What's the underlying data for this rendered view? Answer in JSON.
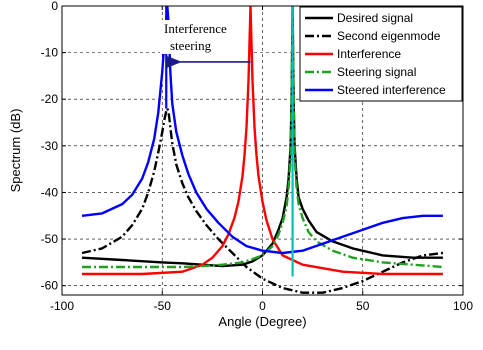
{
  "chart_data": {
    "type": "line",
    "title": "",
    "xlabel": "Angle (Degree)",
    "ylabel": "Spectrum (dB)",
    "xlim": [
      -100,
      100
    ],
    "ylim": [
      -62,
      0
    ],
    "xticks": [
      -100,
      -50,
      0,
      50,
      100
    ],
    "yticks": [
      0,
      -10,
      -20,
      -30,
      -40,
      -50,
      -60
    ],
    "grid": "dashed",
    "legend_position": "top-right",
    "annotation": {
      "text_line1": "Interference",
      "text_line2": "steering",
      "arrow_from": [
        -6,
        -12
      ],
      "arrow_to": [
        -45,
        -12
      ]
    },
    "series": [
      {
        "name": "Desired signal",
        "color": "#000000",
        "style": "solid",
        "x": [
          -90,
          -70,
          -50,
          -40,
          -30,
          -20,
          -10,
          -5,
          0,
          5,
          8,
          10,
          12,
          13,
          14,
          14.5,
          15,
          15.5,
          16,
          17,
          18,
          20,
          23,
          27,
          35,
          45,
          60,
          75,
          90
        ],
        "y": [
          -54,
          -54.5,
          -55,
          -55.2,
          -55.5,
          -55.8,
          -55.5,
          -54.8,
          -53.5,
          -51,
          -48,
          -45.5,
          -41,
          -37,
          -30,
          -20,
          0,
          -20,
          -30,
          -37,
          -41,
          -43.5,
          -46,
          -48.5,
          -50.5,
          -52,
          -53.5,
          -54,
          -54
        ]
      },
      {
        "name": "Second eigenmode",
        "color": "#000000",
        "style": "dashdot",
        "x": [
          -90,
          -80,
          -70,
          -65,
          -60,
          -57,
          -54,
          -52,
          -50,
          -49,
          -48,
          -47.5,
          -47,
          -46.5,
          -46,
          -45,
          -43,
          -40,
          -37,
          -33,
          -28,
          -22,
          -15,
          -8,
          0,
          10,
          20,
          30,
          40,
          50,
          60,
          70,
          80,
          90
        ],
        "y": [
          -53,
          -52,
          -49.5,
          -47,
          -43.5,
          -40,
          -35.5,
          -31.5,
          -27,
          -24.5,
          -22.5,
          -22,
          -22.5,
          -24,
          -26,
          -29.5,
          -34,
          -38,
          -41,
          -44,
          -47,
          -50,
          -53,
          -56,
          -58.5,
          -60.5,
          -61.5,
          -61.5,
          -60.5,
          -59,
          -57,
          -55,
          -53.5,
          -53
        ]
      },
      {
        "name": "Interference",
        "color": "#ff0000",
        "style": "solid",
        "x": [
          -90,
          -60,
          -40,
          -30,
          -25,
          -20,
          -17,
          -14,
          -12,
          -10,
          -9,
          -8,
          -7,
          -6.5,
          -6,
          -5.5,
          -5,
          -4,
          -3,
          -2,
          0,
          2,
          5,
          10,
          20,
          40,
          60,
          90
        ],
        "y": [
          -57.5,
          -57.5,
          -57,
          -55.5,
          -54,
          -51.5,
          -49,
          -45.5,
          -42,
          -36.5,
          -32,
          -26,
          -16,
          -8,
          0,
          -8,
          -16,
          -26,
          -32,
          -36.5,
          -42,
          -46,
          -50,
          -53.5,
          -55.5,
          -57,
          -57.5,
          -57.5
        ]
      },
      {
        "name": "Steering signal",
        "color": "#20a020",
        "style": "dashdot",
        "x": [
          -90,
          -60,
          -40,
          -30,
          -20,
          -10,
          -5,
          0,
          5,
          8,
          10,
          12,
          13,
          14,
          14.5,
          15,
          15.5,
          16,
          17,
          18,
          20,
          23,
          27,
          35,
          45,
          60,
          75,
          90
        ],
        "y": [
          -56,
          -56,
          -56,
          -55.8,
          -55.5,
          -55,
          -54.3,
          -53.5,
          -51.5,
          -49,
          -46.5,
          -43,
          -39,
          -32,
          -20,
          0,
          -20,
          -32,
          -39,
          -42.5,
          -45.5,
          -48.5,
          -50.5,
          -52.5,
          -54,
          -55,
          -55.5,
          -56
        ]
      },
      {
        "name": "Steered interference",
        "color": "#0000ff",
        "style": "solid",
        "x": [
          -90,
          -80,
          -70,
          -65,
          -60,
          -57,
          -54,
          -52,
          -50,
          -49,
          -48,
          -47.5,
          -47,
          -46.5,
          -46,
          -45,
          -43,
          -40,
          -37,
          -33,
          -28,
          -22,
          -15,
          -8,
          0,
          10,
          20,
          30,
          40,
          50,
          60,
          70,
          80,
          90
        ],
        "y": [
          -45,
          -44.5,
          -42.5,
          -40.5,
          -37,
          -33.5,
          -28.5,
          -23,
          -14,
          -8,
          -3,
          0,
          -3,
          -8,
          -14,
          -21,
          -27,
          -32,
          -36,
          -40,
          -43.5,
          -46.5,
          -49.5,
          -51.5,
          -52.5,
          -53,
          -52.5,
          -51,
          -49.5,
          -48,
          -46.5,
          -45.5,
          -45,
          -45
        ]
      }
    ],
    "vertical_lines": [
      {
        "x": -48,
        "y_range": [
          0,
          -22
        ],
        "color": "#0000ff"
      },
      {
        "x": 15,
        "y_range": [
          0,
          -58
        ],
        "color": "#00bfbf"
      }
    ]
  }
}
